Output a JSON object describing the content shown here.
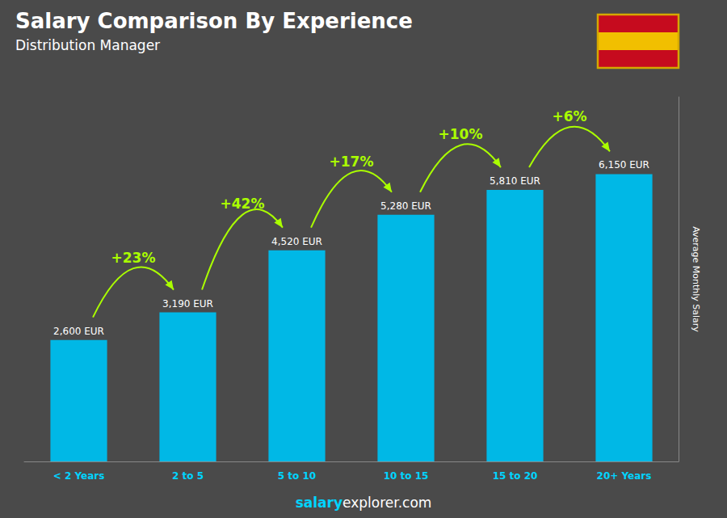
{
  "chart_data": {
    "type": "bar",
    "title": "Salary Comparison By Experience",
    "subtitle": "Distribution Manager",
    "categories": [
      "< 2 Years",
      "2 to 5",
      "5 to 10",
      "10 to 15",
      "15 to 20",
      "20+ Years"
    ],
    "values": [
      2600,
      3190,
      4520,
      5280,
      5810,
      6150
    ],
    "value_labels": [
      "2,600 EUR",
      "3,190 EUR",
      "4,520 EUR",
      "5,280 EUR",
      "5,810 EUR",
      "6,150 EUR"
    ],
    "data_labels": true,
    "color": "#00b8e6",
    "ylabel": "Average Monthly Salary",
    "ylim": [
      0,
      7800
    ],
    "tick_labels": "x",
    "grid": false,
    "annotations": [
      {
        "text": "+23%",
        "from": "< 2 Years",
        "to": "2 to 5",
        "color": "#aaff00"
      },
      {
        "text": "+42%",
        "from": "2 to 5",
        "to": "5 to 10",
        "color": "#aaff00"
      },
      {
        "text": "+17%",
        "from": "5 to 10",
        "to": "10 to 15",
        "color": "#aaff00"
      },
      {
        "text": "+10%",
        "from": "10 to 15",
        "to": "15 to 20",
        "color": "#aaff00"
      },
      {
        "text": "+6%",
        "from": "15 to 20",
        "to": "20+ Years",
        "color": "#aaff00"
      }
    ],
    "footer": [
      "salary",
      "explorer.com"
    ]
  }
}
